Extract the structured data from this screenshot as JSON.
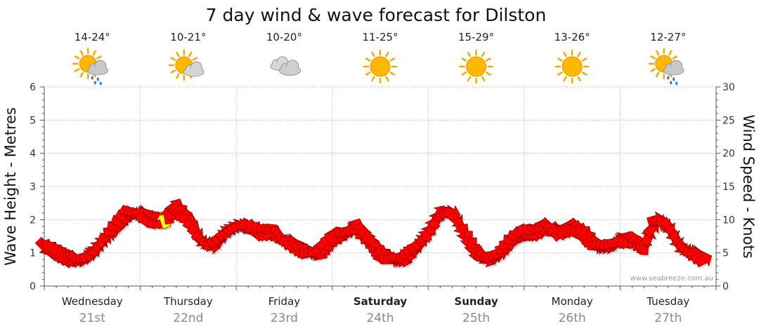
{
  "chart_data": {
    "type": "line",
    "title": "7 day wind & wave forecast for Dilston",
    "ylabel_left": "Wave Height - Metres",
    "ylabel_right": "Wind Speed - Knots",
    "ylim_left": [
      0,
      6
    ],
    "ylim_right": [
      0,
      30
    ],
    "yticks_left": [
      "0",
      "1",
      "2",
      "3",
      "4",
      "5",
      "6"
    ],
    "yticks_right": [
      "0",
      "5",
      "10",
      "15",
      "20",
      "25",
      "30"
    ],
    "grid": true,
    "credit": "www.seabreeze.com.au",
    "days": [
      {
        "name": "Wednesday",
        "date": "21st",
        "bold": false,
        "temp": "14-24°",
        "icon": "sun-cloud-rain-icon"
      },
      {
        "name": "Thursday",
        "date": "22nd",
        "bold": false,
        "temp": "10-21°",
        "icon": "sun-cloud-icon"
      },
      {
        "name": "Friday",
        "date": "23rd",
        "bold": false,
        "temp": "10-20°",
        "icon": "cloud-icon"
      },
      {
        "name": "Saturday",
        "date": "24th",
        "bold": true,
        "temp": "11-25°",
        "icon": "sun-icon"
      },
      {
        "name": "Sunday",
        "date": "25th",
        "bold": true,
        "temp": "15-29°",
        "icon": "sun-icon"
      },
      {
        "name": "Monday",
        "date": "26th",
        "bold": false,
        "temp": "13-26°",
        "icon": "sun-icon"
      },
      {
        "name": "Tuesday",
        "date": "27th",
        "bold": false,
        "temp": "12-27°",
        "icon": "sun-cloud-rain-icon"
      }
    ],
    "series": [
      {
        "name": "Wind Speed - Knots",
        "color": "#ff0000",
        "highlight_color": "#ffff00",
        "x_hours": [
          0,
          3,
          6,
          9,
          12,
          15,
          18,
          21,
          24,
          27,
          30,
          33,
          36,
          39,
          42,
          45,
          48,
          51,
          54,
          57,
          60,
          63,
          66,
          69,
          72,
          75,
          78,
          81,
          84,
          87,
          90,
          93,
          96,
          99,
          102,
          105,
          108,
          111,
          114,
          117,
          120,
          123,
          126,
          129,
          132,
          135,
          138,
          141,
          144,
          147,
          150,
          153,
          156,
          159,
          162,
          165
        ],
        "values": [
          6,
          5,
          4,
          4,
          5,
          7,
          9,
          11,
          11,
          10,
          10,
          12,
          10,
          7,
          6,
          8,
          9,
          9,
          8,
          8,
          7,
          6,
          5,
          5,
          7,
          8,
          9,
          7,
          5,
          4,
          4,
          6,
          8,
          11,
          11,
          8,
          5,
          4,
          5,
          7,
          8,
          8,
          9,
          8,
          9,
          8,
          6,
          6,
          7,
          7,
          6,
          10,
          9,
          6,
          5,
          4
        ],
        "highlight_x_hours": [
          30
        ]
      }
    ]
  }
}
